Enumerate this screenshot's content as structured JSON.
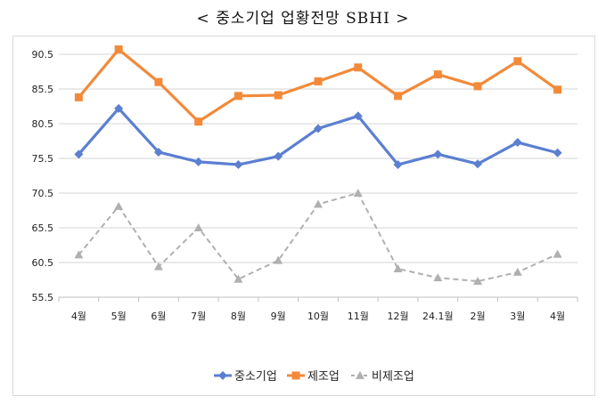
{
  "title": "< 중소기업 업황전망 SBHI >",
  "chart_data": {
    "type": "line",
    "categories": [
      "4월",
      "5월",
      "6월",
      "7월",
      "8월",
      "9월",
      "10월",
      "11월",
      "12월",
      "24.1월",
      "2월",
      "3월",
      "4월"
    ],
    "series": [
      {
        "name": "중소기업",
        "color": "#5b7fd1",
        "marker": "diamond",
        "dash": false,
        "values": [
          76.1,
          82.7,
          76.4,
          75.0,
          74.6,
          75.8,
          79.8,
          81.6,
          74.6,
          76.1,
          74.7,
          77.8,
          76.3
        ]
      },
      {
        "name": "제조업",
        "color": "#f28a3a",
        "marker": "square",
        "dash": false,
        "values": [
          84.3,
          91.2,
          86.5,
          80.8,
          84.5,
          84.6,
          86.6,
          88.6,
          84.5,
          87.6,
          85.9,
          89.5,
          85.4
        ]
      },
      {
        "name": "비제조업",
        "color": "#b0b0b0",
        "marker": "triangle",
        "dash": true,
        "values": [
          61.6,
          68.6,
          59.9,
          65.5,
          58.1,
          60.8,
          68.9,
          70.5,
          59.6,
          58.3,
          57.8,
          59.1,
          61.7
        ]
      }
    ],
    "y_ticks": [
      "90.5",
      "85.5",
      "80.5",
      "75.5",
      "70.5",
      "65.5",
      "60.5",
      "55.5"
    ],
    "ylim": [
      55.5,
      90.5
    ],
    "grid": true,
    "legend_position": "bottom"
  }
}
